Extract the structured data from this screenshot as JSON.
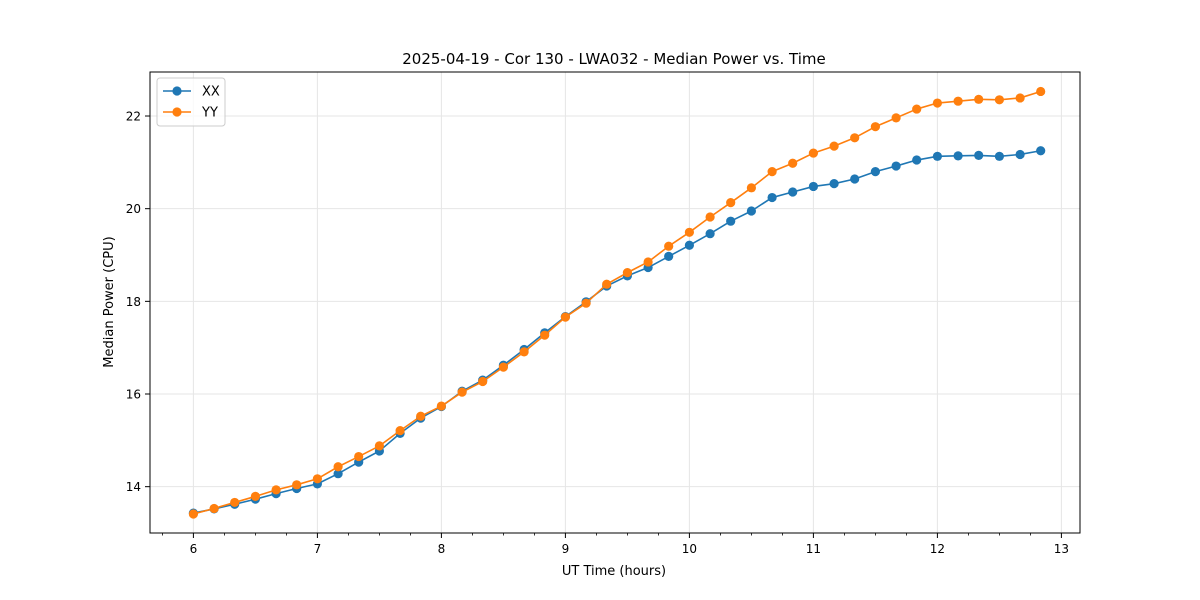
{
  "chart_data": {
    "type": "line",
    "title": "2025-04-19 - Cor 130 - LWA032 - Median Power vs. Time",
    "xlabel": "UT Time (hours)",
    "ylabel": "Median Power (CPU)",
    "xlim": [
      5.65,
      13.15
    ],
    "ylim": [
      13.0,
      22.95
    ],
    "xticks": [
      6,
      7,
      8,
      9,
      10,
      11,
      12,
      13
    ],
    "xtick_labels": [
      "6",
      "7",
      "8",
      "9",
      "10",
      "11",
      "12",
      "13"
    ],
    "yticks": [
      14,
      16,
      18,
      20,
      22
    ],
    "ytick_labels": [
      "14",
      "16",
      "18",
      "20",
      "22"
    ],
    "grid": true,
    "legend_position": "top-left",
    "x": [
      6.0,
      6.167,
      6.333,
      6.5,
      6.667,
      6.833,
      7.0,
      7.167,
      7.333,
      7.5,
      7.667,
      7.833,
      8.0,
      8.167,
      8.333,
      8.5,
      8.667,
      8.833,
      9.0,
      9.167,
      9.333,
      9.5,
      9.667,
      9.833,
      10.0,
      10.167,
      10.333,
      10.5,
      10.667,
      10.833,
      11.0,
      11.167,
      11.333,
      11.5,
      11.667,
      11.833,
      12.0,
      12.167,
      12.333,
      12.5,
      12.667,
      12.833
    ],
    "series": [
      {
        "name": "XX",
        "color": "#1f77b4",
        "values": [
          13.43,
          13.52,
          13.62,
          13.73,
          13.85,
          13.96,
          14.06,
          14.28,
          14.53,
          14.77,
          15.15,
          15.48,
          15.73,
          16.06,
          16.3,
          16.62,
          16.96,
          17.32,
          17.67,
          17.99,
          18.33,
          18.55,
          18.73,
          18.97,
          19.21,
          19.46,
          19.73,
          19.95,
          20.24,
          20.36,
          20.48,
          20.54,
          20.64,
          20.8,
          20.92,
          21.05,
          21.13,
          21.14,
          21.15,
          21.13,
          21.17,
          21.25
        ]
      },
      {
        "name": "YY",
        "color": "#ff7f0e",
        "values": [
          13.41,
          13.53,
          13.66,
          13.79,
          13.93,
          14.04,
          14.17,
          14.43,
          14.65,
          14.88,
          15.21,
          15.52,
          15.74,
          16.04,
          16.27,
          16.58,
          16.91,
          17.27,
          17.66,
          17.96,
          18.37,
          18.62,
          18.85,
          19.19,
          19.49,
          19.82,
          20.13,
          20.45,
          20.8,
          20.98,
          21.2,
          21.35,
          21.53,
          21.77,
          21.96,
          22.15,
          22.28,
          22.32,
          22.36,
          22.35,
          22.39,
          22.53
        ]
      }
    ]
  }
}
